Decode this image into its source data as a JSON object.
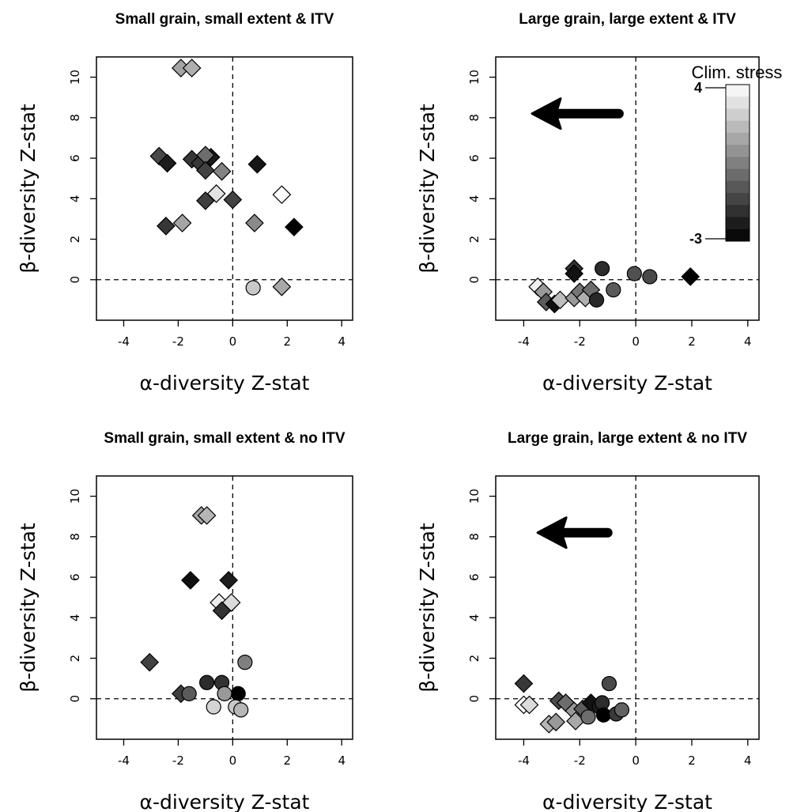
{
  "colors": {
    "stress_high": "#ffffff",
    "stress_low": "#000000",
    "marker_edge": "#000000"
  },
  "legend": {
    "title": "Clim. stress",
    "max_label": "4",
    "min_label": "-3",
    "min": -3,
    "max": 4,
    "steps": 13
  },
  "chart_data": [
    {
      "type": "scatter",
      "title": "Small grain, small extent & ITV",
      "xlabel": "α-diversity Z-stat",
      "ylabel": "β-diversity Z-stat",
      "xlim": [
        -5,
        4.4
      ],
      "ylim": [
        -2,
        11
      ],
      "xticks": [
        -4,
        -2,
        0,
        2,
        4
      ],
      "yticks": [
        0,
        2,
        4,
        6,
        8,
        10
      ],
      "vline": 0,
      "hline": 0,
      "arrow": null,
      "points": [
        {
          "x": -1.9,
          "y": 10.45,
          "shape": "diamond",
          "stress": 1.5
        },
        {
          "x": -1.5,
          "y": 10.45,
          "shape": "diamond",
          "stress": 1.8
        },
        {
          "x": -2.7,
          "y": 6.1,
          "shape": "diamond",
          "stress": -1.0
        },
        {
          "x": -2.4,
          "y": 5.75,
          "shape": "diamond",
          "stress": -2.2
        },
        {
          "x": -1.5,
          "y": 5.95,
          "shape": "diamond",
          "stress": -1.5
        },
        {
          "x": -1.2,
          "y": 5.75,
          "shape": "diamond",
          "stress": -1.5
        },
        {
          "x": -0.8,
          "y": 6.05,
          "shape": "diamond",
          "stress": -2.3
        },
        {
          "x": -1.0,
          "y": 6.15,
          "shape": "diamond",
          "stress": 0.0
        },
        {
          "x": -1.0,
          "y": 5.4,
          "shape": "diamond",
          "stress": -1.2
        },
        {
          "x": -0.4,
          "y": 5.35,
          "shape": "diamond",
          "stress": 0.6
        },
        {
          "x": -0.6,
          "y": 4.25,
          "shape": "diamond",
          "stress": 3.2
        },
        {
          "x": -1.0,
          "y": 3.9,
          "shape": "diamond",
          "stress": -1.3
        },
        {
          "x": 0.0,
          "y": 3.95,
          "shape": "diamond",
          "stress": -1.2
        },
        {
          "x": 0.9,
          "y": 5.7,
          "shape": "diamond",
          "stress": -2.4
        },
        {
          "x": 1.8,
          "y": 4.2,
          "shape": "diamond",
          "stress": 4.0
        },
        {
          "x": -2.45,
          "y": 2.65,
          "shape": "diamond",
          "stress": -1.5
        },
        {
          "x": -1.85,
          "y": 2.8,
          "shape": "diamond",
          "stress": 1.5
        },
        {
          "x": 0.8,
          "y": 2.8,
          "shape": "diamond",
          "stress": 0.8
        },
        {
          "x": 2.25,
          "y": 2.6,
          "shape": "diamond",
          "stress": -3.0
        },
        {
          "x": 0.75,
          "y": -0.4,
          "shape": "circle",
          "stress": 2.5
        },
        {
          "x": 1.8,
          "y": -0.35,
          "shape": "diamond",
          "stress": 1.6
        }
      ]
    },
    {
      "type": "scatter",
      "title": "Large grain, large extent & ITV",
      "xlabel": "α-diversity Z-stat",
      "ylabel": "β-diversity Z-stat",
      "xlim": [
        -5,
        4.4
      ],
      "ylim": [
        -2,
        11
      ],
      "xticks": [
        -4,
        -2,
        0,
        2,
        4
      ],
      "yticks": [
        0,
        2,
        4,
        6,
        8,
        10
      ],
      "vline": 0,
      "hline": 0,
      "arrow": {
        "from_x": -0.6,
        "to_x": -3.7,
        "y": 8.2
      },
      "points": [
        {
          "x": -2.2,
          "y": 0.55,
          "shape": "diamond",
          "stress": -1.6
        },
        {
          "x": -2.2,
          "y": 0.3,
          "shape": "diamond",
          "stress": -2.5
        },
        {
          "x": -1.2,
          "y": 0.55,
          "shape": "circle",
          "stress": -1.8
        },
        {
          "x": -0.05,
          "y": 0.3,
          "shape": "circle",
          "stress": -0.8
        },
        {
          "x": 0.5,
          "y": 0.15,
          "shape": "circle",
          "stress": -1.0
        },
        {
          "x": 1.95,
          "y": 0.15,
          "shape": "diamond",
          "stress": -3.0
        },
        {
          "x": -3.5,
          "y": -0.35,
          "shape": "diamond",
          "stress": 3.6
        },
        {
          "x": -3.3,
          "y": -0.6,
          "shape": "diamond",
          "stress": 1.2
        },
        {
          "x": -3.2,
          "y": -1.1,
          "shape": "diamond",
          "stress": -0.5
        },
        {
          "x": -2.9,
          "y": -1.2,
          "shape": "diamond",
          "stress": -2.6
        },
        {
          "x": -2.7,
          "y": -1.0,
          "shape": "diamond",
          "stress": 2.2
        },
        {
          "x": -2.2,
          "y": -0.9,
          "shape": "diamond",
          "stress": 1.2
        },
        {
          "x": -2.0,
          "y": -0.6,
          "shape": "diamond",
          "stress": 0.2
        },
        {
          "x": -1.8,
          "y": -0.9,
          "shape": "diamond",
          "stress": 1.8
        },
        {
          "x": -1.6,
          "y": -0.5,
          "shape": "diamond",
          "stress": 0.0
        },
        {
          "x": -1.4,
          "y": -1.0,
          "shape": "circle",
          "stress": -1.9
        },
        {
          "x": -0.8,
          "y": -0.5,
          "shape": "circle",
          "stress": -0.5
        }
      ]
    },
    {
      "type": "scatter",
      "title": "Small grain, small extent & no ITV",
      "xlabel": "α-diversity Z-stat",
      "ylabel": "β-diversity Z-stat",
      "xlim": [
        -5,
        4.4
      ],
      "ylim": [
        -2,
        11
      ],
      "xticks": [
        -4,
        -2,
        0,
        2,
        4
      ],
      "yticks": [
        0,
        2,
        4,
        6,
        8,
        10
      ],
      "vline": 0,
      "hline": 0,
      "arrow": null,
      "points": [
        {
          "x": -1.15,
          "y": 9.05,
          "shape": "diamond",
          "stress": 1.5
        },
        {
          "x": -0.95,
          "y": 9.05,
          "shape": "diamond",
          "stress": 2.0
        },
        {
          "x": -1.55,
          "y": 5.85,
          "shape": "diamond",
          "stress": -2.6
        },
        {
          "x": -0.15,
          "y": 5.85,
          "shape": "diamond",
          "stress": -2.2
        },
        {
          "x": -0.5,
          "y": 4.75,
          "shape": "diamond",
          "stress": 3.5
        },
        {
          "x": -0.05,
          "y": 4.75,
          "shape": "diamond",
          "stress": 3.0
        },
        {
          "x": -0.4,
          "y": 4.35,
          "shape": "diamond",
          "stress": -1.6
        },
        {
          "x": -3.05,
          "y": 1.8,
          "shape": "diamond",
          "stress": -1.2
        },
        {
          "x": 0.45,
          "y": 1.8,
          "shape": "circle",
          "stress": 0.5
        },
        {
          "x": -1.9,
          "y": 0.25,
          "shape": "diamond",
          "stress": -1.3
        },
        {
          "x": -1.6,
          "y": 0.25,
          "shape": "circle",
          "stress": -0.5
        },
        {
          "x": -0.95,
          "y": 0.8,
          "shape": "circle",
          "stress": -1.8
        },
        {
          "x": -0.4,
          "y": 0.8,
          "shape": "circle",
          "stress": -1.6
        },
        {
          "x": 0.2,
          "y": 0.25,
          "shape": "circle",
          "stress": -3.0
        },
        {
          "x": -0.3,
          "y": 0.25,
          "shape": "circle",
          "stress": 1.2
        },
        {
          "x": -0.7,
          "y": -0.4,
          "shape": "circle",
          "stress": 2.8
        },
        {
          "x": 0.1,
          "y": -0.4,
          "shape": "circle",
          "stress": 2.5
        },
        {
          "x": 0.3,
          "y": -0.55,
          "shape": "circle",
          "stress": 2.0
        }
      ]
    },
    {
      "type": "scatter",
      "title": "Large grain, large extent & no ITV",
      "xlabel": "α-diversity Z-stat",
      "ylabel": "β-diversity Z-stat",
      "xlim": [
        -5,
        4.4
      ],
      "ylim": [
        -2,
        11
      ],
      "xticks": [
        -4,
        -2,
        0,
        2,
        4
      ],
      "yticks": [
        0,
        2,
        4,
        6,
        8,
        10
      ],
      "vline": 0,
      "hline": 0,
      "arrow": {
        "from_x": -1.0,
        "to_x": -3.5,
        "y": 8.2
      },
      "points": [
        {
          "x": -4.0,
          "y": 0.75,
          "shape": "diamond",
          "stress": -1.5
        },
        {
          "x": -4.0,
          "y": -0.3,
          "shape": "diamond",
          "stress": 4.0
        },
        {
          "x": -3.8,
          "y": -0.3,
          "shape": "diamond",
          "stress": 3.0
        },
        {
          "x": -2.75,
          "y": -0.1,
          "shape": "diamond",
          "stress": -1.0
        },
        {
          "x": -2.5,
          "y": -0.2,
          "shape": "diamond",
          "stress": 0.0
        },
        {
          "x": -2.2,
          "y": -0.6,
          "shape": "diamond",
          "stress": 1.2
        },
        {
          "x": -1.9,
          "y": -0.5,
          "shape": "diamond",
          "stress": -0.5
        },
        {
          "x": -1.6,
          "y": -0.2,
          "shape": "diamond",
          "stress": -2.5
        },
        {
          "x": -1.3,
          "y": -0.4,
          "shape": "circle",
          "stress": -2.3
        },
        {
          "x": -1.2,
          "y": -0.2,
          "shape": "circle",
          "stress": -1.8
        },
        {
          "x": -1.15,
          "y": -0.8,
          "shape": "circle",
          "stress": -3.0
        },
        {
          "x": -0.95,
          "y": 0.75,
          "shape": "circle",
          "stress": -1.0
        },
        {
          "x": -0.7,
          "y": -0.75,
          "shape": "circle",
          "stress": -1.4
        },
        {
          "x": -0.5,
          "y": -0.55,
          "shape": "circle",
          "stress": -0.3
        },
        {
          "x": -3.1,
          "y": -1.25,
          "shape": "diamond",
          "stress": 2.0
        },
        {
          "x": -2.85,
          "y": -1.15,
          "shape": "diamond",
          "stress": 1.2
        },
        {
          "x": -2.15,
          "y": -1.1,
          "shape": "diamond",
          "stress": 1.6
        },
        {
          "x": -1.7,
          "y": -0.9,
          "shape": "circle",
          "stress": 0.0
        }
      ]
    }
  ]
}
